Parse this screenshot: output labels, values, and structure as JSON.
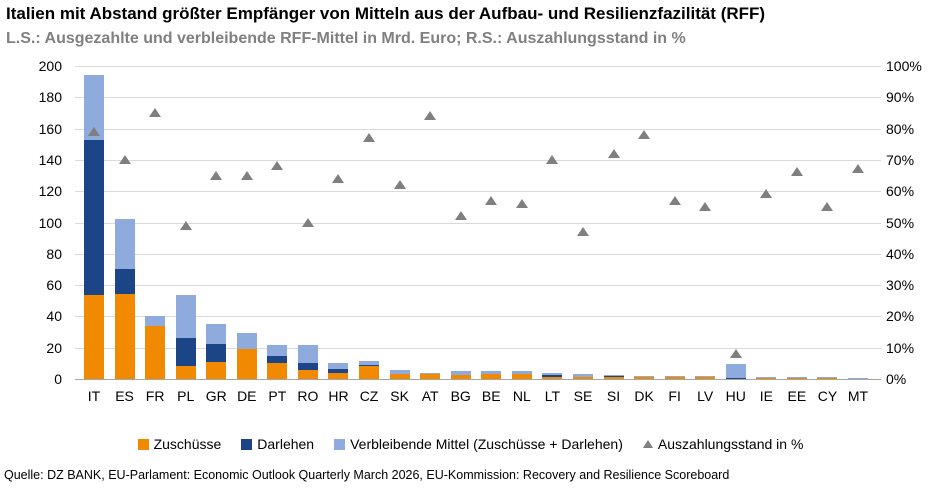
{
  "title": "Italien mit Abstand größter Empfänger von Mitteln aus der Aufbau- und Resilienzfazilität (RFF)",
  "subtitle": "L.S.: Ausgezahlte und verbleibende RFF-Mittel in Mrd. Euro; R.S.: Auszahlungsstand in %",
  "source": "Quelle: DZ BANK, EU-Parlament: Economic Outlook Quarterly March 2026, EU-Kommission: Recovery and Resilience Scoreboard",
  "colors": {
    "zuschuesse": "#F18A00",
    "darlehen": "#1C4587",
    "verbleibend": "#8FAADC",
    "marker": "#7F7F7F",
    "gridline": "#D9D9D9",
    "axisline": "#A6A6A6",
    "subtitle_gray": "#808080"
  },
  "legend": [
    {
      "key": "zuschuesse",
      "shape": "square",
      "label": "Zuschüsse"
    },
    {
      "key": "darlehen",
      "shape": "square",
      "label": "Darlehen"
    },
    {
      "key": "verbleibend",
      "shape": "square",
      "label": "Verbleibende Mittel (Zuschüsse + Darlehen)"
    },
    {
      "key": "marker",
      "shape": "triangle",
      "label": "Auszahlungsstand in %"
    }
  ],
  "chart_data": {
    "type": "bar",
    "subtype": "stacked-bars-with-scatter-markers",
    "categories": [
      "IT",
      "ES",
      "FR",
      "PL",
      "GR",
      "DE",
      "PT",
      "RO",
      "HR",
      "CZ",
      "SK",
      "AT",
      "BG",
      "BE",
      "NL",
      "LT",
      "SE",
      "SI",
      "DK",
      "FI",
      "LV",
      "HU",
      "IE",
      "EE",
      "CY",
      "MT"
    ],
    "series": [
      {
        "name": "Zuschüsse",
        "axis": "left",
        "unit": "Mrd. Euro",
        "color_key": "zuschuesse",
        "values": [
          53.5,
          54.5,
          34.0,
          8.5,
          11.0,
          19.0,
          10.5,
          6.0,
          4.0,
          8.0,
          3.5,
          3.2,
          2.6,
          2.9,
          2.9,
          1.5,
          1.6,
          1.2,
          1.3,
          1.1,
          1.05,
          0,
          0.65,
          0.8,
          0.65,
          0.3
        ]
      },
      {
        "name": "Darlehen",
        "axis": "left",
        "unit": "Mrd. Euro",
        "color_key": "darlehen",
        "values": [
          99.5,
          16.0,
          0,
          18.0,
          11.5,
          0,
          4.5,
          4.5,
          2.5,
          1.0,
          0,
          0,
          0,
          0,
          0,
          1.0,
          0,
          0.7,
          0,
          0,
          0,
          0.8,
          0,
          0,
          0,
          0
        ]
      },
      {
        "name": "Verbleibende Mittel (Zuschüsse + Darlehen)",
        "axis": "left",
        "unit": "Mrd. Euro",
        "color_key": "verbleibend",
        "values": [
          41.5,
          31.5,
          6.0,
          27.5,
          12.5,
          10.5,
          7.0,
          11.0,
          4.0,
          2.7,
          2.2,
          0.5,
          2.5,
          2.2,
          2.3,
          1.1,
          1.9,
          0.6,
          0.4,
          0.8,
          0.85,
          8.6,
          0.45,
          0.4,
          0.55,
          0.2
        ]
      },
      {
        "name": "Auszahlungsstand in %",
        "axis": "right",
        "unit": "%",
        "marker": "triangle",
        "color_key": "marker",
        "values": [
          79,
          70,
          85,
          49,
          65,
          65,
          68,
          50,
          64,
          77,
          62,
          84,
          52,
          57,
          56,
          70,
          47,
          72,
          78,
          57,
          55,
          8,
          59,
          66,
          55,
          67
        ]
      }
    ],
    "left_axis": {
      "min": 0,
      "max": 200,
      "step": 20,
      "ticks": [
        "0",
        "20",
        "40",
        "60",
        "80",
        "100",
        "120",
        "140",
        "160",
        "180",
        "200"
      ]
    },
    "right_axis": {
      "min": 0,
      "max": 100,
      "step": 10,
      "suffix": "%",
      "ticks": [
        "0%",
        "10%",
        "20%",
        "30%",
        "40%",
        "50%",
        "60%",
        "70%",
        "80%",
        "90%",
        "100%"
      ]
    },
    "grid": true,
    "legend_position": "bottom"
  }
}
